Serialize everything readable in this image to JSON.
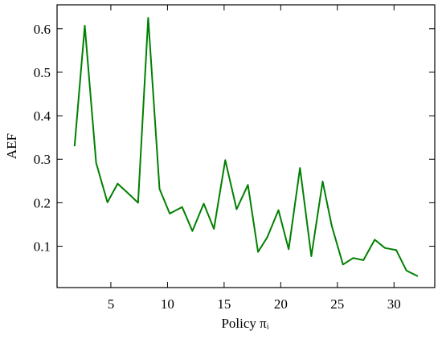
{
  "chart_data": {
    "type": "line",
    "xlabel": "Policy πᵢ",
    "ylabel": "AEF",
    "xlim": [
      0.25,
      33.6
    ],
    "ylim": [
      0.005,
      0.655
    ],
    "xticks": [
      5,
      10,
      15,
      20,
      25,
      30
    ],
    "yticks": [
      0.1,
      0.2,
      0.3,
      0.4,
      0.5,
      0.6
    ],
    "grid": false,
    "x": [
      1.8,
      2.7,
      3.7,
      4.7,
      5.6,
      6.6,
      7.4,
      8.3,
      9.3,
      10.2,
      11.3,
      12.2,
      13.2,
      14.1,
      15.1,
      16.1,
      17.1,
      18.0,
      18.8,
      19.8,
      20.7,
      21.7,
      22.7,
      23.7,
      24.5,
      25.5,
      26.4,
      27.3,
      28.3,
      29.2,
      30.2,
      31.1,
      32.1
    ],
    "series": [
      {
        "name": "AEF",
        "color": "#008000",
        "values": [
          0.33,
          0.607,
          0.292,
          0.201,
          0.244,
          0.22,
          0.2,
          0.625,
          0.232,
          0.175,
          0.19,
          0.135,
          0.198,
          0.14,
          0.298,
          0.185,
          0.241,
          0.087,
          0.12,
          0.183,
          0.093,
          0.28,
          0.077,
          0.249,
          0.147,
          0.058,
          0.073,
          0.068,
          0.115,
          0.096,
          0.091,
          0.044,
          0.031
        ]
      }
    ]
  }
}
